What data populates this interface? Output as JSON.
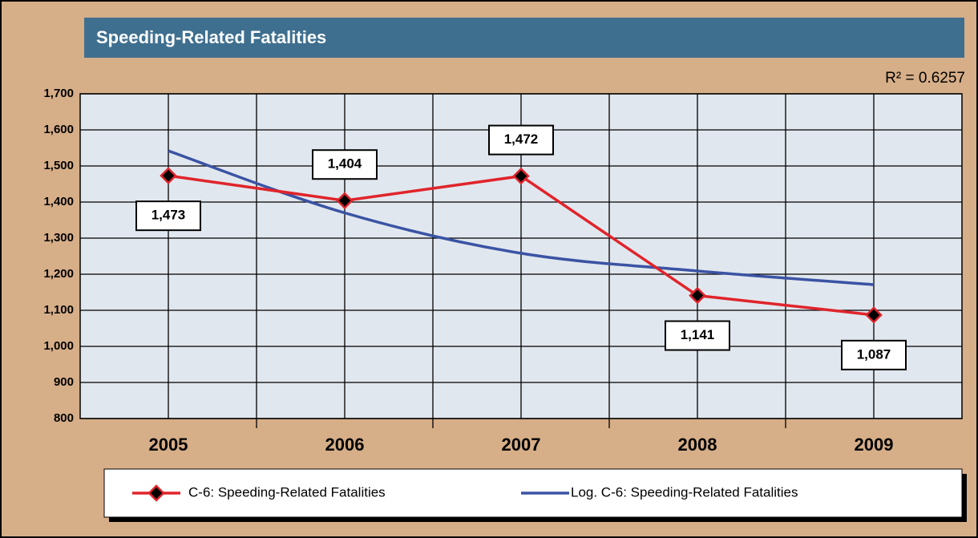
{
  "chart_data": {
    "type": "line",
    "title": "Speeding-Related Fatalities",
    "annotation": "R² = 0.6257",
    "categories": [
      "2005",
      "2006",
      "2007",
      "2008",
      "2009"
    ],
    "series": [
      {
        "name": "C-6: Speeding-Related Fatalities",
        "color": "#e0242b",
        "marker": "diamond",
        "values": [
          1473,
          1404,
          1472,
          1141,
          1087
        ],
        "value_labels": [
          "1,473",
          "1,404",
          "1,472",
          "1,141",
          "1,087"
        ]
      },
      {
        "name": "Log. C-6: Speeding-Related Fatalities",
        "color": "#3a53a4",
        "smooth": true,
        "values": [
          1542,
          1370,
          1258,
          1209,
          1171
        ]
      }
    ],
    "ylim": [
      800,
      1700
    ],
    "yticks": [
      800,
      900,
      {
        "value": 1000,
        "label": "1,000"
      },
      {
        "value": 1100,
        "label": "1,100"
      },
      {
        "value": 1200,
        "label": "1,200"
      },
      {
        "value": 1300,
        "label": "1,300"
      },
      {
        "value": 1400,
        "label": "1,400"
      },
      {
        "value": 1500,
        "label": "1,500"
      },
      {
        "value": 1600,
        "label": "1,600"
      },
      {
        "value": 1700,
        "label": "1,700"
      }
    ],
    "grid": true
  }
}
